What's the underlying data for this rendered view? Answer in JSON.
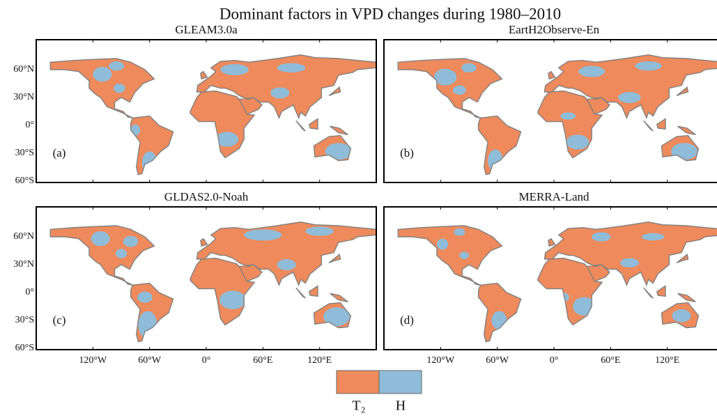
{
  "title": "Dominant factors in VPD changes during 1980–2010",
  "panels": [
    {
      "title": "GLEAM3.0a",
      "letter": "(a)"
    },
    {
      "title": "EartH2Observe-En",
      "letter": "(b)"
    },
    {
      "title": "GLDAS2.0-Noah",
      "letter": "(c)"
    },
    {
      "title": "MERRA-Land",
      "letter": "(d)"
    }
  ],
  "lat_labels": [
    "60°N",
    "30°N",
    "0°",
    "30°S",
    "60°S"
  ],
  "lon_labels": [
    "120°W",
    "60°W",
    "0°",
    "60°E",
    "120°E"
  ],
  "legend": [
    "T₂",
    "H"
  ]
}
